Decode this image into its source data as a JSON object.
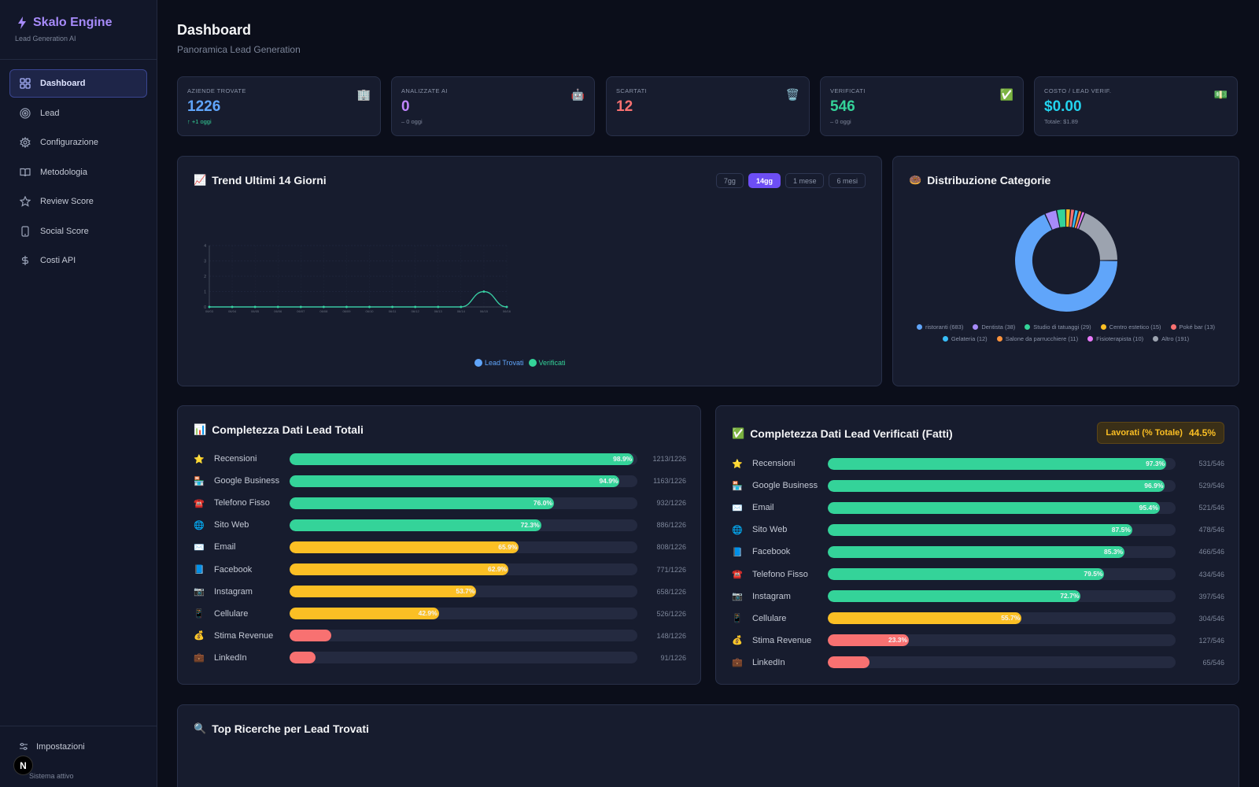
{
  "app": {
    "name": "Skalo Engine",
    "subtitle": "Lead Generation AI"
  },
  "sidebar": {
    "items": [
      {
        "label": "Dashboard",
        "icon": "dashboard-icon"
      },
      {
        "label": "Lead",
        "icon": "target-icon"
      },
      {
        "label": "Configurazione",
        "icon": "gear-icon"
      },
      {
        "label": "Metodologia",
        "icon": "book-icon"
      },
      {
        "label": "Review Score",
        "icon": "star-icon"
      },
      {
        "label": "Social Score",
        "icon": "phone-icon"
      },
      {
        "label": "Costi API",
        "icon": "dollar-icon"
      }
    ],
    "settings_label": "Impostazioni",
    "status_text": "Sistema attivo",
    "badge": "N"
  },
  "header": {
    "title": "Dashboard",
    "subtitle": "Panoramica Lead Generation"
  },
  "stats": [
    {
      "label": "Aziende trovate",
      "value": "1226",
      "delta": "↑ +1 oggi",
      "color": "#60a5fa",
      "delta_color": "#34d399",
      "icon": "🏢"
    },
    {
      "label": "Analizzate AI",
      "value": "0",
      "delta": "– 0 oggi",
      "color": "#c084fc",
      "delta_color": "#7c8599",
      "icon": "🤖"
    },
    {
      "label": "Scartati",
      "value": "12",
      "delta": "",
      "color": "#f87171",
      "delta_color": "#7c8599",
      "icon": "🗑️"
    },
    {
      "label": "Verificati",
      "value": "546",
      "delta": "– 0 oggi",
      "color": "#34d399",
      "delta_color": "#7c8599",
      "icon": "✅"
    },
    {
      "label": "Costo / Lead verif.",
      "value": "$0.00",
      "delta": "Totale: $1.89",
      "color": "#22d3ee",
      "delta_color": "#7c8599",
      "icon": "💵"
    }
  ],
  "trend": {
    "title": "Trend Ultimi 14 Giorni",
    "icon": "📈",
    "ranges": [
      "7gg",
      "14gg",
      "1 mese",
      "6 mesi"
    ],
    "active_range": "14gg",
    "legend": [
      {
        "name": "Lead Trovati",
        "color": "#60a5fa"
      },
      {
        "name": "Verificati",
        "color": "#34d399"
      }
    ]
  },
  "chart_data": [
    {
      "type": "line",
      "title": "Trend Ultimi 14 Giorni",
      "x": [
        "06/03",
        "06/04",
        "06/05",
        "06/06",
        "06/07",
        "06/08",
        "06/09",
        "06/10",
        "06/11",
        "06/12",
        "06/13",
        "06/14",
        "06/15",
        "06/16"
      ],
      "ylim": [
        0,
        4
      ],
      "yticks": [
        0,
        1,
        2,
        3,
        4
      ],
      "series": [
        {
          "name": "Lead Trovati",
          "color": "#60a5fa",
          "values": [
            0,
            0,
            0,
            0,
            0,
            0,
            0,
            0,
            0,
            0,
            0,
            0,
            1,
            0
          ]
        },
        {
          "name": "Verificati",
          "color": "#34d399",
          "values": [
            0,
            0,
            0,
            0,
            0,
            0,
            0,
            0,
            0,
            0,
            0,
            0,
            1,
            0
          ]
        }
      ],
      "grid": true,
      "legend_position": "bottom"
    },
    {
      "type": "pie",
      "title": "Distribuzione Categorie",
      "slices": [
        {
          "name": "ristoranti",
          "value": 683,
          "color": "#60a5fa"
        },
        {
          "name": "Dentista",
          "value": 38,
          "color": "#a78bfa"
        },
        {
          "name": "Studio di tatuaggi",
          "value": 29,
          "color": "#34d399"
        },
        {
          "name": "Centro estetico",
          "value": 15,
          "color": "#fbbf24"
        },
        {
          "name": "Poké bar",
          "value": 13,
          "color": "#f87171"
        },
        {
          "name": "Gelateria",
          "value": 12,
          "color": "#38bdf8"
        },
        {
          "name": "Salone da parrucchiere",
          "value": 11,
          "color": "#fb923c"
        },
        {
          "name": "Fisioterapista",
          "value": 10,
          "color": "#e879f9"
        },
        {
          "name": "Altro",
          "value": 191,
          "color": "#9ca3af"
        }
      ],
      "legend_position": "bottom"
    }
  ],
  "distribution": {
    "title": "Distribuzione Categorie",
    "icon": "🍩"
  },
  "completeness_total": {
    "title": "Completezza Dati Lead Totali",
    "icon": "📊",
    "rows": [
      {
        "icon": "⭐",
        "label": "Recensioni",
        "pct": 98.9,
        "pct_text": "98.9%",
        "count": "1213/1226",
        "color": "#34d399"
      },
      {
        "icon": "🏪",
        "label": "Google Business",
        "pct": 94.9,
        "pct_text": "94.9%",
        "count": "1163/1226",
        "color": "#34d399"
      },
      {
        "icon": "☎️",
        "label": "Telefono Fisso",
        "pct": 76.0,
        "pct_text": "76.0%",
        "count": "932/1226",
        "color": "#34d399"
      },
      {
        "icon": "🌐",
        "label": "Sito Web",
        "pct": 72.3,
        "pct_text": "72.3%",
        "count": "886/1226",
        "color": "#34d399"
      },
      {
        "icon": "✉️",
        "label": "Email",
        "pct": 65.9,
        "pct_text": "65.9%",
        "count": "808/1226",
        "color": "#fbbf24"
      },
      {
        "icon": "📘",
        "label": "Facebook",
        "pct": 62.9,
        "pct_text": "62.9%",
        "count": "771/1226",
        "color": "#fbbf24"
      },
      {
        "icon": "📷",
        "label": "Instagram",
        "pct": 53.7,
        "pct_text": "53.7%",
        "count": "658/1226",
        "color": "#fbbf24"
      },
      {
        "icon": "📱",
        "label": "Cellulare",
        "pct": 42.9,
        "pct_text": "42.9%",
        "count": "526/1226",
        "color": "#fbbf24"
      },
      {
        "icon": "💰",
        "label": "Stima Revenue",
        "pct": 12.1,
        "pct_text": "",
        "count": "148/1226",
        "color": "#f87171"
      },
      {
        "icon": "💼",
        "label": "LinkedIn",
        "pct": 7.4,
        "pct_text": "",
        "count": "91/1226",
        "color": "#f87171"
      }
    ]
  },
  "completeness_verified": {
    "title": "Completezza Dati Lead Verificati (Fatti)",
    "icon": "✅",
    "badge_label": "Lavorati (% Totale)",
    "badge_value": "44.5%",
    "rows": [
      {
        "icon": "⭐",
        "label": "Recensioni",
        "pct": 97.3,
        "pct_text": "97.3%",
        "count": "531/546",
        "color": "#34d399"
      },
      {
        "icon": "🏪",
        "label": "Google Business",
        "pct": 96.9,
        "pct_text": "96.9%",
        "count": "529/546",
        "color": "#34d399"
      },
      {
        "icon": "✉️",
        "label": "Email",
        "pct": 95.4,
        "pct_text": "95.4%",
        "count": "521/546",
        "color": "#34d399"
      },
      {
        "icon": "🌐",
        "label": "Sito Web",
        "pct": 87.5,
        "pct_text": "87.5%",
        "count": "478/546",
        "color": "#34d399"
      },
      {
        "icon": "📘",
        "label": "Facebook",
        "pct": 85.3,
        "pct_text": "85.3%",
        "count": "466/546",
        "color": "#34d399"
      },
      {
        "icon": "☎️",
        "label": "Telefono Fisso",
        "pct": 79.5,
        "pct_text": "79.5%",
        "count": "434/546",
        "color": "#34d399"
      },
      {
        "icon": "📷",
        "label": "Instagram",
        "pct": 72.7,
        "pct_text": "72.7%",
        "count": "397/546",
        "color": "#34d399"
      },
      {
        "icon": "📱",
        "label": "Cellulare",
        "pct": 55.7,
        "pct_text": "55.7%",
        "count": "304/546",
        "color": "#fbbf24"
      },
      {
        "icon": "💰",
        "label": "Stima Revenue",
        "pct": 23.3,
        "pct_text": "23.3%",
        "count": "127/546",
        "color": "#f87171"
      },
      {
        "icon": "💼",
        "label": "LinkedIn",
        "pct": 11.9,
        "pct_text": "",
        "count": "65/546",
        "color": "#f87171"
      }
    ]
  },
  "top_searches": {
    "title": "Top Ricerche per Lead Trovati",
    "icon": "🔍"
  }
}
